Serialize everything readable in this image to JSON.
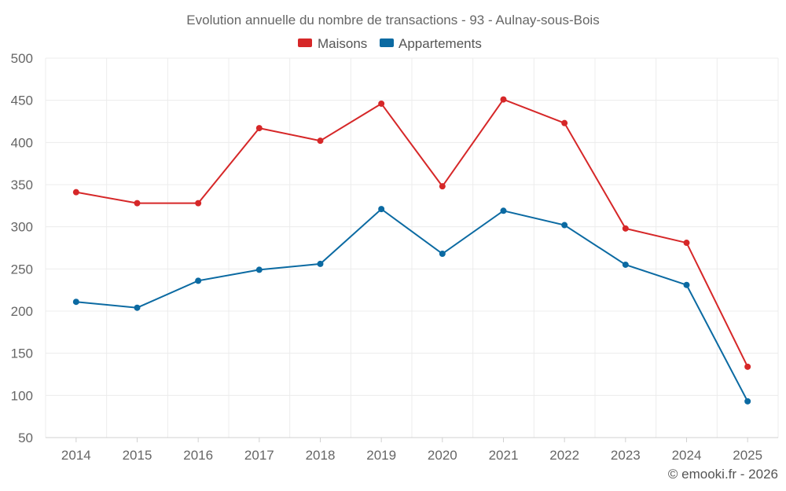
{
  "chart_data": {
    "type": "line",
    "title": "Evolution annuelle du nombre de transactions - 93 - Aulnay-sous-Bois",
    "categories": [
      "2014",
      "2015",
      "2016",
      "2017",
      "2018",
      "2019",
      "2020",
      "2021",
      "2022",
      "2023",
      "2024",
      "2025"
    ],
    "series": [
      {
        "name": "Maisons",
        "color": "#d62728",
        "values": [
          341,
          328,
          328,
          417,
          402,
          446,
          348,
          451,
          423,
          298,
          281,
          134
        ]
      },
      {
        "name": "Appartements",
        "color": "#0b6aa2",
        "values": [
          211,
          204,
          236,
          249,
          256,
          321,
          268,
          319,
          302,
          255,
          231,
          93
        ]
      }
    ],
    "y_ticks": [
      50,
      100,
      150,
      200,
      250,
      300,
      350,
      400,
      450,
      500
    ],
    "ylim": [
      50,
      500
    ],
    "grid": true,
    "legend_position": "top-center",
    "xlabel": "",
    "ylabel": ""
  },
  "credit": "© emooki.fr - 2026"
}
